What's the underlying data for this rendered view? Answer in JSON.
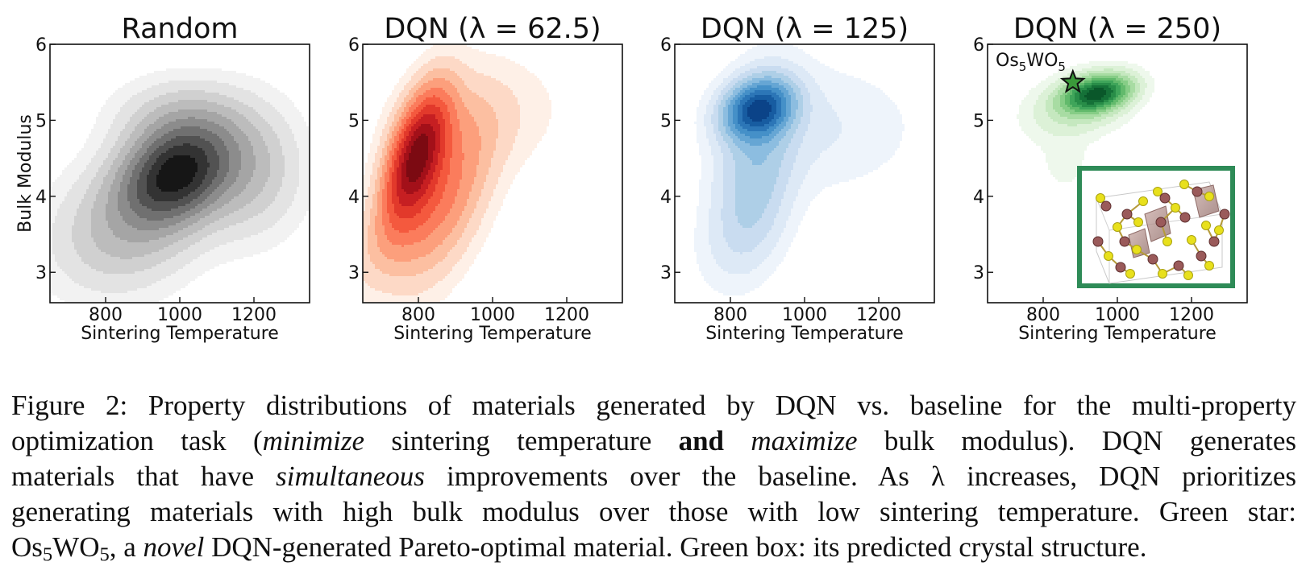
{
  "chart_data": [
    {
      "type": "heatmap",
      "title": "Random",
      "xlabel": "Sintering Temperature",
      "ylabel": "Bulk Modulus",
      "xlim": [
        650,
        1350
      ],
      "ylim": [
        2.6,
        6.0
      ],
      "xticks": [
        "800",
        "1000",
        "1200"
      ],
      "yticks": [
        "3",
        "4",
        "5",
        "6"
      ],
      "colormap": "Greys",
      "density_peak": {
        "x": 990,
        "y": 4.3
      }
    },
    {
      "type": "heatmap",
      "title": "DQN (λ = 62.5)",
      "xlabel": "Sintering Temperature",
      "ylabel": "",
      "xlim": [
        650,
        1350
      ],
      "ylim": [
        2.6,
        6.0
      ],
      "xticks": [
        "800",
        "1000",
        "1200"
      ],
      "yticks": [
        "3",
        "4",
        "5",
        "6"
      ],
      "colormap": "Reds",
      "density_peak": {
        "x": 795,
        "y": 4.55
      }
    },
    {
      "type": "heatmap",
      "title": "DQN (λ = 125)",
      "xlabel": "Sintering Temperature",
      "ylabel": "",
      "xlim": [
        650,
        1350
      ],
      "ylim": [
        2.6,
        6.0
      ],
      "xticks": [
        "800",
        "1000",
        "1200"
      ],
      "yticks": [
        "3",
        "4",
        "5",
        "6"
      ],
      "colormap": "Blues",
      "density_peak": {
        "x": 875,
        "y": 5.15
      }
    },
    {
      "type": "heatmap",
      "title": "DQN (λ = 250)",
      "xlabel": "Sintering Temperature",
      "ylabel": "",
      "xlim": [
        650,
        1350
      ],
      "ylim": [
        2.6,
        6.0
      ],
      "xticks": [
        "800",
        "1000",
        "1200"
      ],
      "yticks": [
        "3",
        "4",
        "5",
        "6"
      ],
      "colormap": "Greens",
      "density_peak": {
        "x": 945,
        "y": 5.35
      },
      "annotation": {
        "label": "Os5WO5",
        "x": 880,
        "y": 5.5,
        "marker": "star",
        "color": "#3a9a3a"
      },
      "inset": {
        "description": "predicted crystal structure",
        "border_color": "#2e8b57"
      }
    }
  ],
  "annotation_label": {
    "base1": "Os",
    "sub1": "5",
    "base2": "WO",
    "sub2": "5"
  },
  "caption": {
    "l1": "Figure 2: Property distributions of materials generated by DQN vs. baseline for the multi-property",
    "l2a": "optimization task (",
    "l2b": "minimize",
    "l2c": " sintering temperature ",
    "l2d": "and",
    "l2e": " ",
    "l2f": "maximize",
    "l2g": " bulk modulus). DQN generates",
    "l3a": "materials that have ",
    "l3b": "simultaneous",
    "l3c": " improvements over the baseline. As λ increases, DQN prioritizes",
    "l4": "generating materials with high bulk modulus over those with low sintering temperature. Green star:",
    "l5a": "Os",
    "l5b": "5",
    "l5c": "WO",
    "l5d": "5",
    "l5e": ", a ",
    "l5f": "novel",
    "l5g": " DQN-generated Pareto-optimal material. Green box: its predicted crystal structure."
  }
}
